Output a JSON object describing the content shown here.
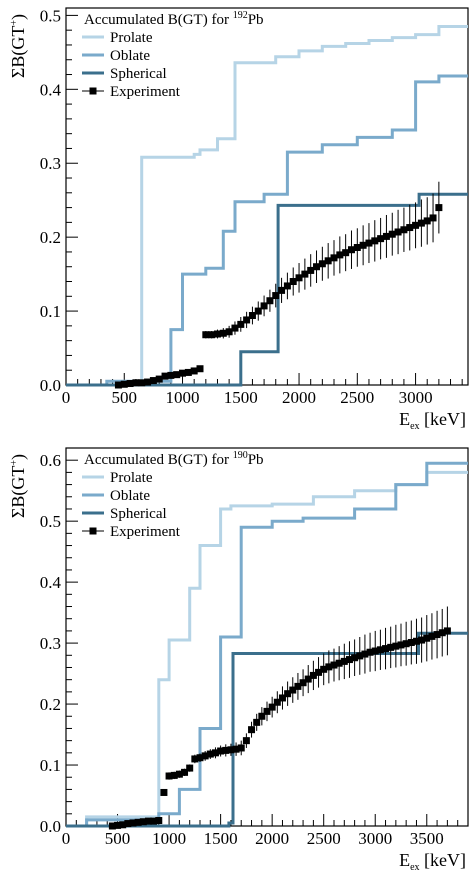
{
  "chart_data": [
    {
      "type": "line",
      "title": "Accumulated B(GT) for ",
      "title_isotope_mass": "192",
      "title_isotope_symbol": "Pb",
      "ylabel": "ΣB(GT",
      "ylabel_sup": "+",
      "ylabel_close": ")",
      "xlabel": "E",
      "xlabel_sub": "ex",
      "xlabel_unit": " [keV]",
      "xlim": [
        0,
        3450
      ],
      "ylim": [
        0,
        0.51
      ],
      "xticks": [
        0,
        500,
        1000,
        1500,
        2000,
        2500,
        3000
      ],
      "xtick_labels": [
        "0",
        "500",
        "1000",
        "1500",
        "2000",
        "2500",
        "3000"
      ],
      "yticks": [
        0,
        0.1,
        0.2,
        0.3,
        0.4,
        0.5
      ],
      "ytick_labels": [
        "0.0",
        "0.1",
        "0.2",
        "0.3",
        "0.4",
        "0.5"
      ],
      "legend_position": "top-left",
      "series": [
        {
          "name": "Prolate",
          "color": "#b6d4e6",
          "style": "step",
          "x": [
            0,
            650,
            650,
            1100,
            1100,
            1150,
            1150,
            1300,
            1300,
            1450,
            1450,
            1800,
            1800,
            2000,
            2000,
            2200,
            2200,
            2400,
            2400,
            2600,
            2600,
            2800,
            2800,
            3000,
            3000,
            3200,
            3200,
            3450
          ],
          "y": [
            0,
            0,
            0.308,
            0.308,
            0.312,
            0.312,
            0.318,
            0.318,
            0.333,
            0.333,
            0.436,
            0.436,
            0.444,
            0.444,
            0.452,
            0.452,
            0.458,
            0.458,
            0.462,
            0.462,
            0.466,
            0.466,
            0.47,
            0.47,
            0.474,
            0.474,
            0.485,
            0.485
          ]
        },
        {
          "name": "Oblate",
          "color": "#7aaacb",
          "style": "step",
          "x": [
            0,
            350,
            350,
            900,
            900,
            1000,
            1000,
            1200,
            1200,
            1350,
            1350,
            1450,
            1450,
            1700,
            1700,
            1900,
            1900,
            2200,
            2200,
            2500,
            2500,
            2800,
            2800,
            3000,
            3000,
            3200,
            3200,
            3450
          ],
          "y": [
            0,
            0,
            0.005,
            0.005,
            0.075,
            0.075,
            0.15,
            0.15,
            0.158,
            0.158,
            0.208,
            0.208,
            0.248,
            0.248,
            0.258,
            0.258,
            0.315,
            0.315,
            0.325,
            0.325,
            0.335,
            0.335,
            0.345,
            0.345,
            0.41,
            0.41,
            0.418,
            0.418
          ]
        },
        {
          "name": "Spherical",
          "color": "#3b6f8c",
          "style": "step",
          "x": [
            0,
            1500,
            1500,
            1820,
            1820,
            3030,
            3030,
            3450
          ],
          "y": [
            0,
            0,
            0.045,
            0.045,
            0.243,
            0.243,
            0.258,
            0.258
          ]
        },
        {
          "name": "Experiment",
          "color": "#000000",
          "style": "markers",
          "x": [
            450,
            500,
            550,
            600,
            650,
            700,
            750,
            800,
            850,
            900,
            950,
            1000,
            1050,
            1100,
            1150,
            1200,
            1250,
            1300,
            1350,
            1400,
            1450,
            1500,
            1550,
            1600,
            1650,
            1700,
            1750,
            1800,
            1850,
            1900,
            1950,
            2000,
            2050,
            2100,
            2150,
            2200,
            2250,
            2300,
            2350,
            2400,
            2450,
            2500,
            2550,
            2600,
            2650,
            2700,
            2750,
            2800,
            2850,
            2900,
            2950,
            3000,
            3050,
            3100,
            3150,
            3200
          ],
          "y": [
            0.0,
            0.001,
            0.002,
            0.003,
            0.003,
            0.004,
            0.006,
            0.008,
            0.012,
            0.013,
            0.014,
            0.016,
            0.017,
            0.019,
            0.022,
            0.068,
            0.068,
            0.069,
            0.07,
            0.072,
            0.077,
            0.082,
            0.088,
            0.094,
            0.1,
            0.107,
            0.114,
            0.121,
            0.128,
            0.134,
            0.14,
            0.145,
            0.15,
            0.155,
            0.16,
            0.164,
            0.168,
            0.172,
            0.176,
            0.179,
            0.183,
            0.186,
            0.189,
            0.192,
            0.195,
            0.198,
            0.201,
            0.204,
            0.207,
            0.21,
            0.213,
            0.216,
            0.219,
            0.222,
            0.226,
            0.24
          ],
          "yerr": [
            0.002,
            0.002,
            0.002,
            0.002,
            0.002,
            0.002,
            0.002,
            0.003,
            0.003,
            0.003,
            0.003,
            0.003,
            0.003,
            0.003,
            0.004,
            0.005,
            0.005,
            0.006,
            0.007,
            0.008,
            0.009,
            0.01,
            0.011,
            0.012,
            0.013,
            0.014,
            0.015,
            0.016,
            0.017,
            0.018,
            0.019,
            0.02,
            0.021,
            0.022,
            0.022,
            0.023,
            0.024,
            0.024,
            0.025,
            0.025,
            0.026,
            0.026,
            0.027,
            0.027,
            0.028,
            0.028,
            0.029,
            0.029,
            0.03,
            0.03,
            0.031,
            0.031,
            0.032,
            0.032,
            0.033,
            0.035
          ]
        }
      ]
    },
    {
      "type": "line",
      "title": "Accumulated B(GT) for ",
      "title_isotope_mass": "190",
      "title_isotope_symbol": "Pb",
      "ylabel": "ΣB(GT",
      "ylabel_sup": "+",
      "ylabel_close": ")",
      "xlabel": "E",
      "xlabel_sub": "ex",
      "xlabel_unit": " [keV]",
      "xlim": [
        0,
        3900
      ],
      "ylim": [
        0,
        0.62
      ],
      "xticks": [
        0,
        500,
        1000,
        1500,
        2000,
        2500,
        3000,
        3500
      ],
      "xtick_labels": [
        "0",
        "500",
        "1000",
        "1500",
        "2000",
        "2500",
        "3000",
        "3500"
      ],
      "yticks": [
        0,
        0.1,
        0.2,
        0.3,
        0.4,
        0.5,
        0.6
      ],
      "ytick_labels": [
        "0.0",
        "0.1",
        "0.2",
        "0.3",
        "0.4",
        "0.5",
        "0.6"
      ],
      "legend_position": "top-left",
      "series": [
        {
          "name": "Prolate",
          "color": "#b6d4e6",
          "style": "step",
          "x": [
            0,
            200,
            200,
            900,
            900,
            1000,
            1000,
            1200,
            1200,
            1300,
            1300,
            1500,
            1500,
            1600,
            1600,
            2000,
            2000,
            2400,
            2400,
            2800,
            2800,
            3200,
            3200,
            3500,
            3500,
            3900
          ],
          "y": [
            0,
            0,
            0.015,
            0.015,
            0.24,
            0.24,
            0.305,
            0.305,
            0.39,
            0.39,
            0.46,
            0.46,
            0.52,
            0.52,
            0.525,
            0.525,
            0.528,
            0.528,
            0.54,
            0.54,
            0.55,
            0.55,
            0.56,
            0.56,
            0.58,
            0.58
          ]
        },
        {
          "name": "Oblate",
          "color": "#7aaacb",
          "style": "step",
          "x": [
            0,
            200,
            200,
            900,
            900,
            1100,
            1100,
            1300,
            1300,
            1500,
            1500,
            1700,
            1700,
            2000,
            2000,
            2300,
            2300,
            2800,
            2800,
            3200,
            3200,
            3500,
            3500,
            3900
          ],
          "y": [
            0,
            0,
            0.01,
            0.01,
            0.02,
            0.02,
            0.06,
            0.06,
            0.16,
            0.16,
            0.31,
            0.31,
            0.49,
            0.49,
            0.5,
            0.5,
            0.505,
            0.505,
            0.52,
            0.52,
            0.56,
            0.56,
            0.595,
            0.595
          ]
        },
        {
          "name": "Spherical",
          "color": "#3b6f8c",
          "style": "step",
          "x": [
            0,
            1580,
            1580,
            1620,
            1620,
            3420,
            3420,
            3900
          ],
          "y": [
            0,
            0,
            0.005,
            0.005,
            0.283,
            0.283,
            0.316,
            0.316
          ]
        },
        {
          "name": "Experiment",
          "color": "#000000",
          "style": "markers",
          "x": [
            450,
            500,
            550,
            600,
            650,
            700,
            750,
            800,
            850,
            900,
            950,
            1000,
            1050,
            1100,
            1150,
            1200,
            1250,
            1300,
            1350,
            1400,
            1450,
            1500,
            1550,
            1600,
            1650,
            1700,
            1750,
            1800,
            1850,
            1900,
            1950,
            2000,
            2050,
            2100,
            2150,
            2200,
            2250,
            2300,
            2350,
            2400,
            2450,
            2500,
            2550,
            2600,
            2650,
            2700,
            2750,
            2800,
            2850,
            2900,
            2950,
            3000,
            3050,
            3100,
            3150,
            3200,
            3250,
            3300,
            3350,
            3400,
            3450,
            3500,
            3550,
            3600,
            3650,
            3700
          ],
          "y": [
            0.0,
            0.001,
            0.002,
            0.004,
            0.005,
            0.006,
            0.007,
            0.008,
            0.008,
            0.009,
            0.055,
            0.082,
            0.083,
            0.085,
            0.088,
            0.095,
            0.11,
            0.112,
            0.115,
            0.118,
            0.12,
            0.123,
            0.124,
            0.125,
            0.126,
            0.128,
            0.14,
            0.158,
            0.17,
            0.18,
            0.188,
            0.195,
            0.203,
            0.21,
            0.217,
            0.223,
            0.229,
            0.235,
            0.241,
            0.247,
            0.252,
            0.257,
            0.261,
            0.264,
            0.267,
            0.27,
            0.273,
            0.276,
            0.279,
            0.282,
            0.285,
            0.287,
            0.289,
            0.291,
            0.293,
            0.295,
            0.297,
            0.299,
            0.301,
            0.303,
            0.305,
            0.308,
            0.311,
            0.314,
            0.317,
            0.32
          ],
          "yerr": [
            0.002,
            0.002,
            0.002,
            0.002,
            0.002,
            0.002,
            0.002,
            0.002,
            0.002,
            0.002,
            0.005,
            0.006,
            0.006,
            0.006,
            0.006,
            0.006,
            0.007,
            0.007,
            0.008,
            0.008,
            0.009,
            0.009,
            0.01,
            0.01,
            0.011,
            0.012,
            0.012,
            0.013,
            0.014,
            0.015,
            0.016,
            0.017,
            0.018,
            0.019,
            0.02,
            0.021,
            0.022,
            0.022,
            0.023,
            0.024,
            0.025,
            0.026,
            0.027,
            0.027,
            0.028,
            0.029,
            0.03,
            0.03,
            0.031,
            0.032,
            0.032,
            0.033,
            0.033,
            0.034,
            0.034,
            0.035,
            0.035,
            0.036,
            0.036,
            0.037,
            0.037,
            0.038,
            0.038,
            0.039,
            0.039,
            0.04
          ]
        }
      ]
    }
  ]
}
